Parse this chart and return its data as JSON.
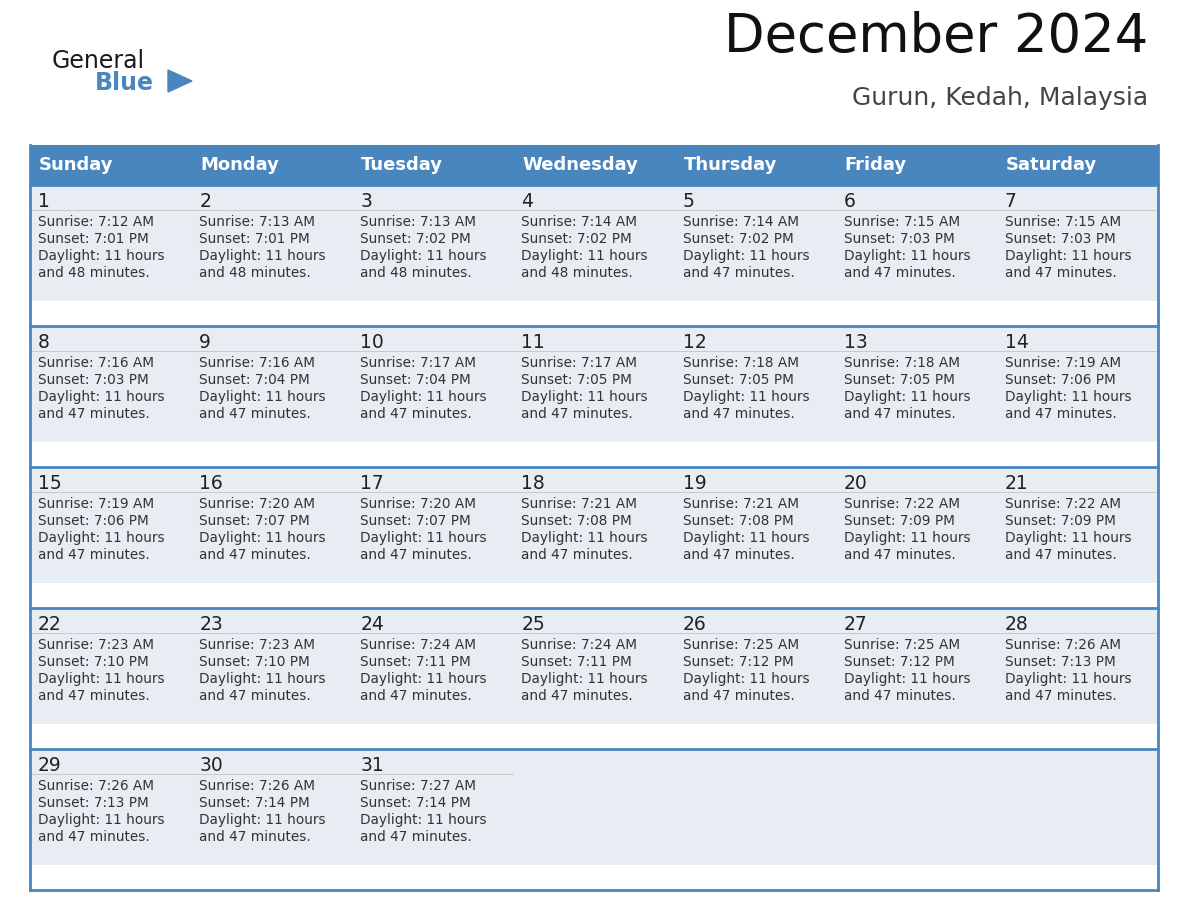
{
  "title": "December 2024",
  "subtitle": "Gurun, Kedah, Malaysia",
  "header_color": "#4a86be",
  "header_text_color": "#FFFFFF",
  "days_of_week": [
    "Sunday",
    "Monday",
    "Tuesday",
    "Wednesday",
    "Thursday",
    "Friday",
    "Saturday"
  ],
  "bg_color": "#FFFFFF",
  "cell_bg_color": "#e8edf4",
  "border_color": "#4a86be",
  "text_color": "#333333",
  "calendar_data": [
    [
      {
        "day": 1,
        "sunrise": "7:12 AM",
        "sunset": "7:01 PM",
        "daylight_line1": "Daylight: 11 hours",
        "daylight_line2": "and 48 minutes."
      },
      {
        "day": 2,
        "sunrise": "7:13 AM",
        "sunset": "7:01 PM",
        "daylight_line1": "Daylight: 11 hours",
        "daylight_line2": "and 48 minutes."
      },
      {
        "day": 3,
        "sunrise": "7:13 AM",
        "sunset": "7:02 PM",
        "daylight_line1": "Daylight: 11 hours",
        "daylight_line2": "and 48 minutes."
      },
      {
        "day": 4,
        "sunrise": "7:14 AM",
        "sunset": "7:02 PM",
        "daylight_line1": "Daylight: 11 hours",
        "daylight_line2": "and 48 minutes."
      },
      {
        "day": 5,
        "sunrise": "7:14 AM",
        "sunset": "7:02 PM",
        "daylight_line1": "Daylight: 11 hours",
        "daylight_line2": "and 47 minutes."
      },
      {
        "day": 6,
        "sunrise": "7:15 AM",
        "sunset": "7:03 PM",
        "daylight_line1": "Daylight: 11 hours",
        "daylight_line2": "and 47 minutes."
      },
      {
        "day": 7,
        "sunrise": "7:15 AM",
        "sunset": "7:03 PM",
        "daylight_line1": "Daylight: 11 hours",
        "daylight_line2": "and 47 minutes."
      }
    ],
    [
      {
        "day": 8,
        "sunrise": "7:16 AM",
        "sunset": "7:03 PM",
        "daylight_line1": "Daylight: 11 hours",
        "daylight_line2": "and 47 minutes."
      },
      {
        "day": 9,
        "sunrise": "7:16 AM",
        "sunset": "7:04 PM",
        "daylight_line1": "Daylight: 11 hours",
        "daylight_line2": "and 47 minutes."
      },
      {
        "day": 10,
        "sunrise": "7:17 AM",
        "sunset": "7:04 PM",
        "daylight_line1": "Daylight: 11 hours",
        "daylight_line2": "and 47 minutes."
      },
      {
        "day": 11,
        "sunrise": "7:17 AM",
        "sunset": "7:05 PM",
        "daylight_line1": "Daylight: 11 hours",
        "daylight_line2": "and 47 minutes."
      },
      {
        "day": 12,
        "sunrise": "7:18 AM",
        "sunset": "7:05 PM",
        "daylight_line1": "Daylight: 11 hours",
        "daylight_line2": "and 47 minutes."
      },
      {
        "day": 13,
        "sunrise": "7:18 AM",
        "sunset": "7:05 PM",
        "daylight_line1": "Daylight: 11 hours",
        "daylight_line2": "and 47 minutes."
      },
      {
        "day": 14,
        "sunrise": "7:19 AM",
        "sunset": "7:06 PM",
        "daylight_line1": "Daylight: 11 hours",
        "daylight_line2": "and 47 minutes."
      }
    ],
    [
      {
        "day": 15,
        "sunrise": "7:19 AM",
        "sunset": "7:06 PM",
        "daylight_line1": "Daylight: 11 hours",
        "daylight_line2": "and 47 minutes."
      },
      {
        "day": 16,
        "sunrise": "7:20 AM",
        "sunset": "7:07 PM",
        "daylight_line1": "Daylight: 11 hours",
        "daylight_line2": "and 47 minutes."
      },
      {
        "day": 17,
        "sunrise": "7:20 AM",
        "sunset": "7:07 PM",
        "daylight_line1": "Daylight: 11 hours",
        "daylight_line2": "and 47 minutes."
      },
      {
        "day": 18,
        "sunrise": "7:21 AM",
        "sunset": "7:08 PM",
        "daylight_line1": "Daylight: 11 hours",
        "daylight_line2": "and 47 minutes."
      },
      {
        "day": 19,
        "sunrise": "7:21 AM",
        "sunset": "7:08 PM",
        "daylight_line1": "Daylight: 11 hours",
        "daylight_line2": "and 47 minutes."
      },
      {
        "day": 20,
        "sunrise": "7:22 AM",
        "sunset": "7:09 PM",
        "daylight_line1": "Daylight: 11 hours",
        "daylight_line2": "and 47 minutes."
      },
      {
        "day": 21,
        "sunrise": "7:22 AM",
        "sunset": "7:09 PM",
        "daylight_line1": "Daylight: 11 hours",
        "daylight_line2": "and 47 minutes."
      }
    ],
    [
      {
        "day": 22,
        "sunrise": "7:23 AM",
        "sunset": "7:10 PM",
        "daylight_line1": "Daylight: 11 hours",
        "daylight_line2": "and 47 minutes."
      },
      {
        "day": 23,
        "sunrise": "7:23 AM",
        "sunset": "7:10 PM",
        "daylight_line1": "Daylight: 11 hours",
        "daylight_line2": "and 47 minutes."
      },
      {
        "day": 24,
        "sunrise": "7:24 AM",
        "sunset": "7:11 PM",
        "daylight_line1": "Daylight: 11 hours",
        "daylight_line2": "and 47 minutes."
      },
      {
        "day": 25,
        "sunrise": "7:24 AM",
        "sunset": "7:11 PM",
        "daylight_line1": "Daylight: 11 hours",
        "daylight_line2": "and 47 minutes."
      },
      {
        "day": 26,
        "sunrise": "7:25 AM",
        "sunset": "7:12 PM",
        "daylight_line1": "Daylight: 11 hours",
        "daylight_line2": "and 47 minutes."
      },
      {
        "day": 27,
        "sunrise": "7:25 AM",
        "sunset": "7:12 PM",
        "daylight_line1": "Daylight: 11 hours",
        "daylight_line2": "and 47 minutes."
      },
      {
        "day": 28,
        "sunrise": "7:26 AM",
        "sunset": "7:13 PM",
        "daylight_line1": "Daylight: 11 hours",
        "daylight_line2": "and 47 minutes."
      }
    ],
    [
      {
        "day": 29,
        "sunrise": "7:26 AM",
        "sunset": "7:13 PM",
        "daylight_line1": "Daylight: 11 hours",
        "daylight_line2": "and 47 minutes."
      },
      {
        "day": 30,
        "sunrise": "7:26 AM",
        "sunset": "7:14 PM",
        "daylight_line1": "Daylight: 11 hours",
        "daylight_line2": "and 47 minutes."
      },
      {
        "day": 31,
        "sunrise": "7:27 AM",
        "sunset": "7:14 PM",
        "daylight_line1": "Daylight: 11 hours",
        "daylight_line2": "and 47 minutes."
      },
      null,
      null,
      null,
      null
    ]
  ]
}
